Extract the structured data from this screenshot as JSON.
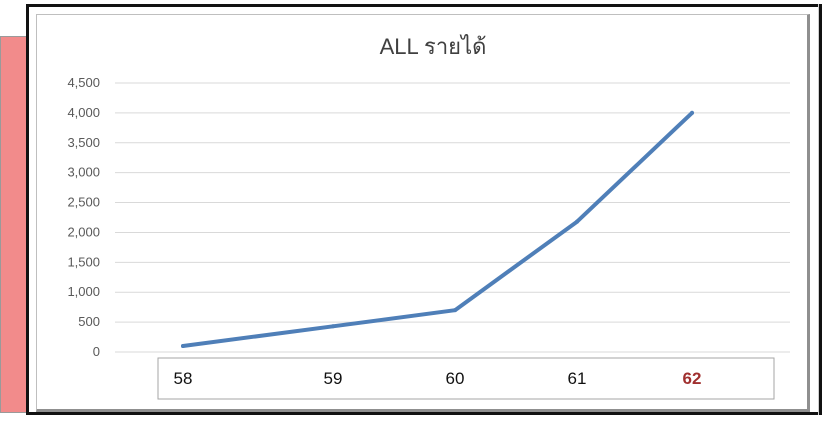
{
  "colors": {
    "line": "#4f7fb8",
    "grid": "#d9d9d9",
    "axis_text": "#595959",
    "category_text": "#111111",
    "highlight_category": "#a0302f",
    "side_panel": "#f28b8b"
  },
  "chart_data": {
    "type": "line",
    "title": "ALL รายได้",
    "xlabel": "",
    "ylabel": "",
    "categories": [
      "58",
      "59",
      "60",
      "61",
      "62"
    ],
    "highlight_category": "62",
    "y_ticks": [
      "0",
      "500",
      "1,000",
      "1,500",
      "2,000",
      "2,500",
      "3,000",
      "3,500",
      "4,000",
      "4,500"
    ],
    "ylim": [
      0,
      4500
    ],
    "grid": true,
    "legend": "none",
    "series": [
      {
        "values": [
          100,
          430,
          700,
          2180,
          4000
        ]
      }
    ]
  }
}
